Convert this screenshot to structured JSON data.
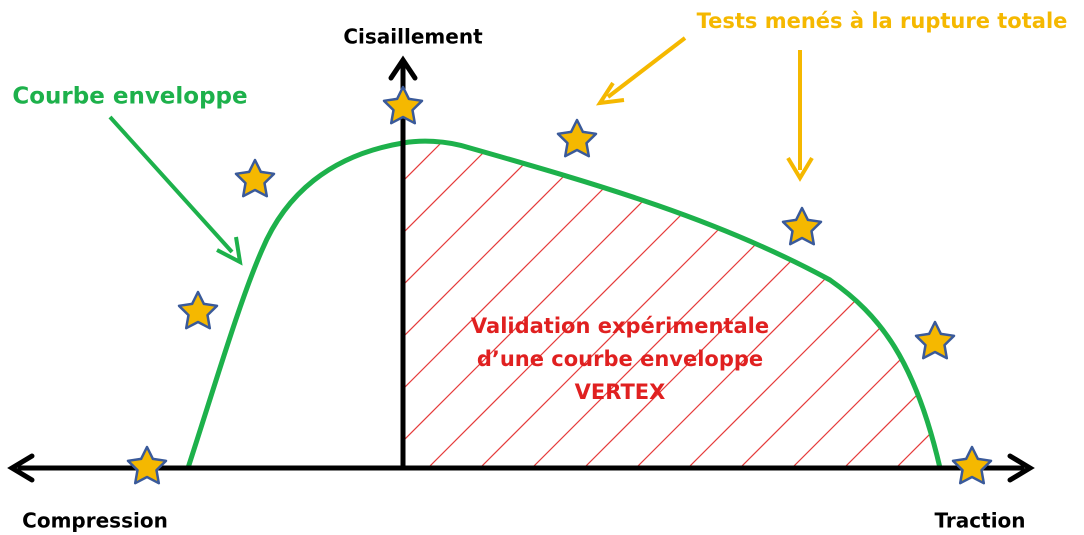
{
  "axes": {
    "y_label": "Cisaillement",
    "x_left_label": "Compression",
    "x_right_label": "Traction"
  },
  "annotations": {
    "curve": "Courbe enveloppe",
    "tests": "Tests menés à la rupture totale"
  },
  "center_text": [
    "Validation expérimentale",
    "d’une courbe enveloppe",
    "VERTEX"
  ]
}
